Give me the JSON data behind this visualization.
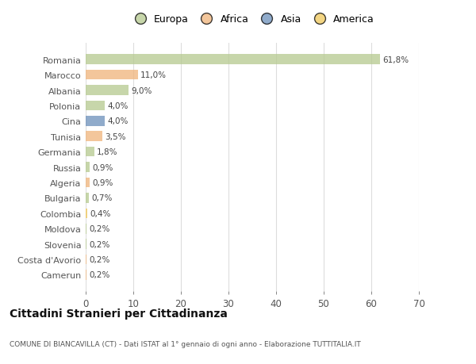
{
  "countries": [
    "Romania",
    "Marocco",
    "Albania",
    "Polonia",
    "Cina",
    "Tunisia",
    "Germania",
    "Russia",
    "Algeria",
    "Bulgaria",
    "Colombia",
    "Moldova",
    "Slovenia",
    "Costa d'Avorio",
    "Camerun"
  ],
  "values": [
    61.8,
    11.0,
    9.0,
    4.0,
    4.0,
    3.5,
    1.8,
    0.9,
    0.9,
    0.7,
    0.4,
    0.2,
    0.2,
    0.2,
    0.2
  ],
  "labels": [
    "61,8%",
    "11,0%",
    "9,0%",
    "4,0%",
    "4,0%",
    "3,5%",
    "1,8%",
    "0,9%",
    "0,9%",
    "0,7%",
    "0,4%",
    "0,2%",
    "0,2%",
    "0,2%",
    "0,2%"
  ],
  "colors": [
    "#b5c98e",
    "#f0b47a",
    "#b5c98e",
    "#b5c98e",
    "#6b8fba",
    "#f0b47a",
    "#b5c98e",
    "#b5c98e",
    "#f0b47a",
    "#b5c98e",
    "#f0c85a",
    "#b5c98e",
    "#b5c98e",
    "#f0b47a",
    "#f0b47a"
  ],
  "legend_labels": [
    "Europa",
    "Africa",
    "Asia",
    "America"
  ],
  "legend_colors": [
    "#b5c98e",
    "#f0b47a",
    "#6b8fba",
    "#f0c85a"
  ],
  "title": "Cittadini Stranieri per Cittadinanza",
  "subtitle": "COMUNE DI BIANCAVILLA (CT) - Dati ISTAT al 1° gennaio di ogni anno - Elaborazione TUTTITALIA.IT",
  "xlim": [
    0,
    70
  ],
  "xticks": [
    0,
    10,
    20,
    30,
    40,
    50,
    60,
    70
  ],
  "bg_color": "#ffffff",
  "grid_color": "#dddddd",
  "bar_alpha": 0.75
}
